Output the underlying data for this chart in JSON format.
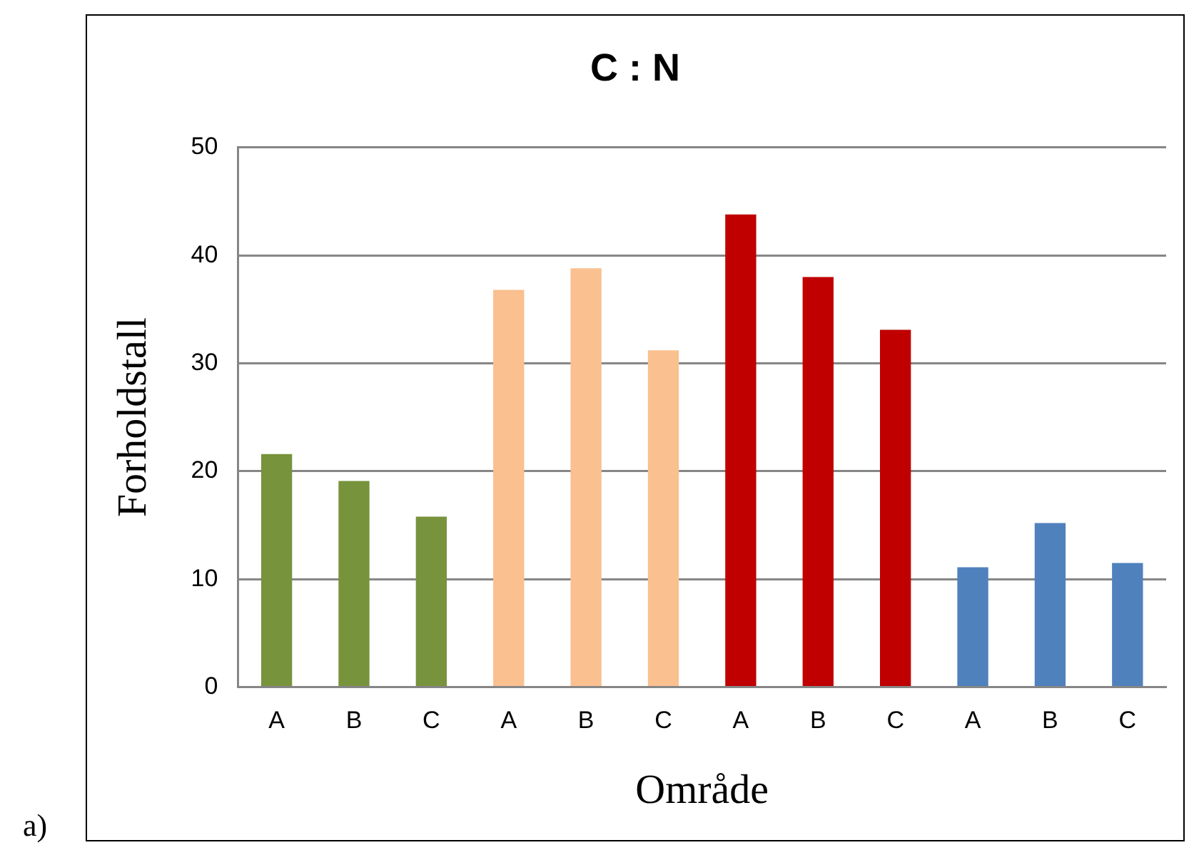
{
  "chart_data": {
    "type": "bar",
    "title": "C : N",
    "xlabel": "Område",
    "ylabel": "Forholdstall",
    "categories": [
      "A",
      "B",
      "C",
      "A",
      "B",
      "C",
      "A",
      "B",
      "C",
      "A",
      "B",
      "C"
    ],
    "values": [
      21.6,
      19.1,
      15.8,
      36.8,
      38.8,
      31.2,
      43.8,
      38.0,
      33.1,
      11.1,
      15.2,
      11.5
    ],
    "colors": [
      "#77933c",
      "#77933c",
      "#77933c",
      "#fac090",
      "#fac090",
      "#fac090",
      "#c00000",
      "#c00000",
      "#c00000",
      "#4f81bd",
      "#4f81bd",
      "#4f81bd"
    ],
    "ylim": [
      0,
      50
    ],
    "yticks": [
      0,
      10,
      20,
      30,
      40,
      50
    ],
    "grid": "y",
    "legend": false,
    "annotations": [
      "a)"
    ]
  }
}
